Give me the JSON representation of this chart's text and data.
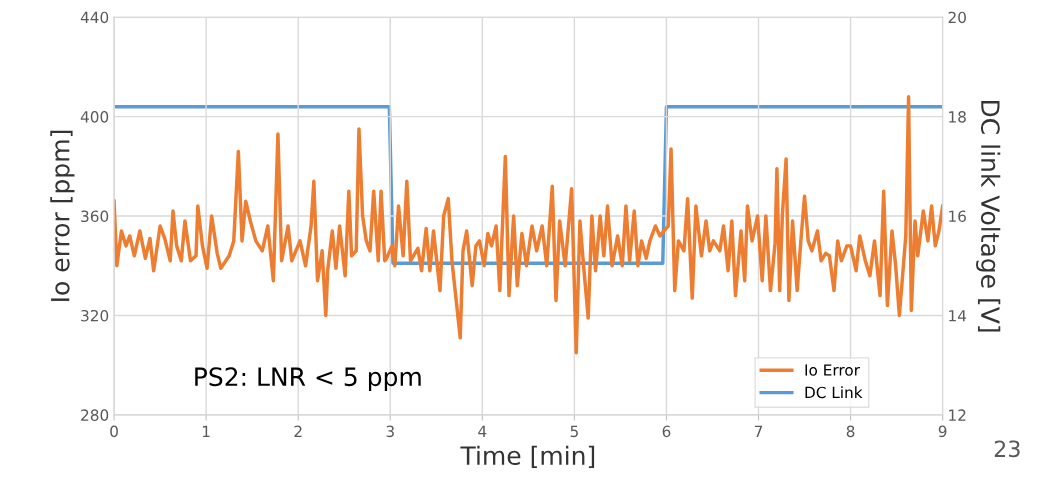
{
  "chart_data": {
    "type": "line",
    "xlabel": "Time [min]",
    "ylabel": "Io error [ppm]",
    "y2label": "DC link Voltage [V]",
    "xlim": [
      0,
      9
    ],
    "xticks": [
      0,
      1,
      2,
      3,
      4,
      5,
      6,
      7,
      8,
      9
    ],
    "ylim": [
      280,
      440
    ],
    "yticks": [
      280,
      320,
      360,
      400,
      440
    ],
    "y2lim": [
      12,
      20
    ],
    "y2ticks": [
      12,
      14,
      16,
      18,
      20
    ],
    "grid": true,
    "legend": "bottom right",
    "marker": "none",
    "line_style": "solid",
    "annotations": [
      "PS2: LNR < 5 ppm",
      "23"
    ],
    "series": [
      {
        "name": "Io Error",
        "color": "#ed7d31",
        "x": [
          0,
          0.03,
          0.08,
          0.13,
          0.17,
          0.22,
          0.28,
          0.34,
          0.39,
          0.43,
          0.5,
          0.55,
          0.61,
          0.64,
          0.68,
          0.73,
          0.77,
          0.83,
          0.89,
          0.91,
          0.96,
          1.01,
          1.06,
          1.12,
          1.16,
          1.25,
          1.3,
          1.35,
          1.39,
          1.43,
          1.48,
          1.54,
          1.61,
          1.67,
          1.73,
          1.78,
          1.82,
          1.89,
          1.93,
          2.02,
          2.08,
          2.14,
          2.17,
          2.21,
          2.26,
          2.3,
          2.32,
          2.37,
          2.41,
          2.45,
          2.51,
          2.55,
          2.58,
          2.63,
          2.66,
          2.7,
          2.74,
          2.78,
          2.82,
          2.87,
          2.9,
          2.94,
          2.96,
          3.02,
          3.05,
          3.09,
          3.14,
          3.18,
          3.22,
          3.3,
          3.34,
          3.39,
          3.43,
          3.47,
          3.54,
          3.58,
          3.63,
          3.67,
          3.76,
          3.79,
          3.83,
          3.89,
          3.93,
          3.97,
          4.02,
          4.06,
          4.1,
          4.15,
          4.19,
          4.25,
          4.29,
          4.34,
          4.38,
          4.43,
          4.48,
          4.54,
          4.59,
          4.65,
          4.7,
          4.76,
          4.8,
          4.84,
          4.9,
          4.97,
          5.02,
          5.06,
          5.1,
          5.15,
          5.19,
          5.23,
          5.28,
          5.32,
          5.36,
          5.41,
          5.47,
          5.52,
          5.56,
          5.6,
          5.65,
          5.69,
          5.73,
          5.78,
          5.82,
          5.88,
          5.93,
          5.97,
          6.02,
          6.05,
          6.09,
          6.13,
          6.19,
          6.23,
          6.28,
          6.32,
          6.38,
          6.43,
          6.47,
          6.51,
          6.58,
          6.62,
          6.67,
          6.71,
          6.75,
          6.81,
          6.85,
          6.88,
          6.93,
          6.99,
          7.04,
          7.08,
          7.13,
          7.18,
          7.2,
          7.23,
          7.26,
          7.3,
          7.33,
          7.37,
          7.42,
          7.46,
          7.5,
          7.54,
          7.58,
          7.64,
          7.68,
          7.73,
          7.77,
          7.82,
          7.86,
          7.9,
          7.96,
          8,
          8.06,
          8.1,
          8.16,
          8.21,
          8.26,
          8.32,
          8.36,
          8.4,
          8.45,
          8.49,
          8.53,
          8.6,
          8.63,
          8.66,
          8.7,
          8.73,
          8.79,
          8.84,
          8.88,
          8.92,
          8.96,
          9
        ],
        "values": [
          366,
          340,
          354,
          348,
          352,
          344,
          354,
          343,
          351,
          338,
          356,
          351,
          342,
          362,
          348,
          342,
          358,
          342,
          344,
          364,
          348,
          339,
          360,
          345,
          339,
          344,
          350,
          386,
          350,
          366,
          358,
          350,
          346,
          356,
          334,
          393,
          342,
          356,
          342,
          350,
          340,
          356,
          374,
          334,
          346,
          320,
          338,
          354,
          339,
          356,
          336,
          370,
          344,
          346,
          395,
          360,
          350,
          346,
          370,
          342,
          370,
          342,
          343,
          348,
          340,
          364,
          344,
          374,
          342,
          347,
          338,
          355,
          338,
          354,
          330,
          360,
          367,
          342,
          311,
          346,
          354,
          332,
          348,
          350,
          340,
          353,
          348,
          356,
          330,
          384,
          328,
          360,
          332,
          353,
          340,
          356,
          346,
          356,
          340,
          372,
          326,
          358,
          340,
          371,
          305,
          358,
          340,
          319,
          360,
          338,
          360,
          344,
          364,
          340,
          352,
          340,
          364,
          342,
          362,
          340,
          350,
          343,
          350,
          356,
          352,
          354,
          356,
          387,
          330,
          350,
          346,
          367,
          327,
          364,
          344,
          358,
          346,
          350,
          346,
          356,
          338,
          358,
          328,
          354,
          334,
          364,
          350,
          360,
          334,
          360,
          330,
          349,
          379,
          330,
          361,
          383,
          326,
          358,
          330,
          350,
          368,
          350,
          346,
          354,
          342,
          345,
          344,
          330,
          350,
          342,
          348,
          348,
          338,
          352,
          342,
          336,
          350,
          328,
          370,
          324,
          354,
          340,
          320,
          352,
          408,
          322,
          358,
          344,
          362,
          350,
          364,
          348,
          354,
          364
        ]
      },
      {
        "name": "DC Link",
        "color": "#5b9bd5",
        "axis": "y2",
        "x": [
          0,
          2.99,
          3.03,
          5.96,
          6.0,
          9
        ],
        "values": [
          18.2,
          18.2,
          15.05,
          15.05,
          18.2,
          18.2
        ]
      }
    ]
  }
}
